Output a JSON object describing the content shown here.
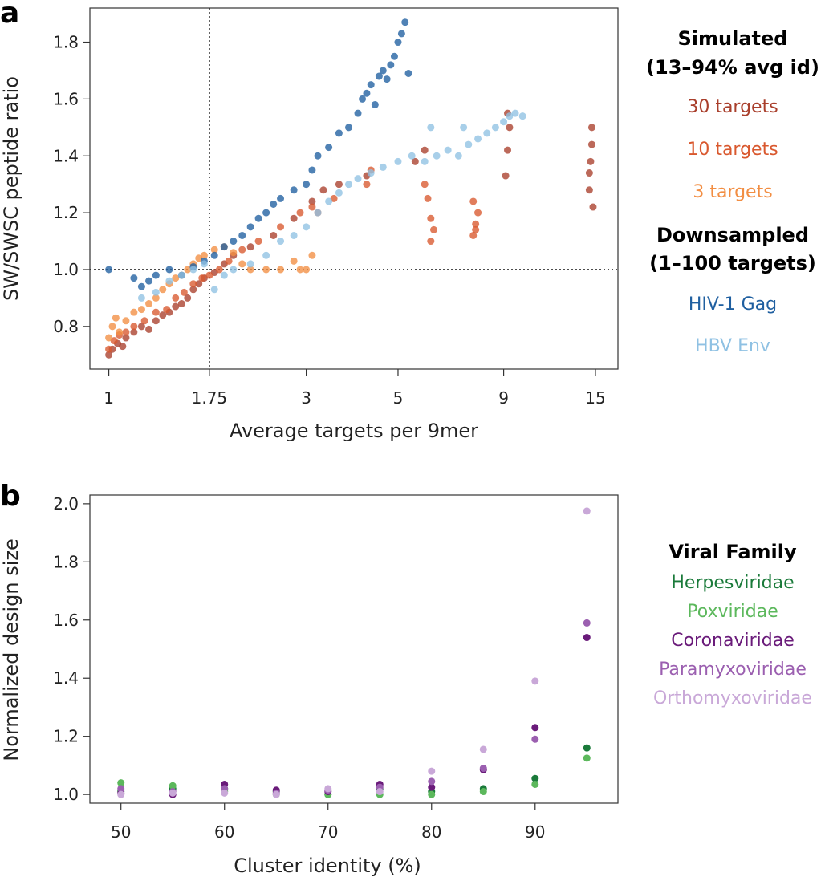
{
  "panels": [
    {
      "letter": "a"
    },
    {
      "letter": "b"
    }
  ],
  "chart_data": [
    {
      "type": "scatter",
      "panel": "a",
      "xlabel": "Average targets per 9mer",
      "ylabel": "SW/SWSC peptide ratio",
      "xscale": "log",
      "xlim": [
        0.9,
        17
      ],
      "ylim": [
        0.65,
        1.92
      ],
      "xticks": [
        1,
        1.75,
        3,
        5,
        9,
        15
      ],
      "xtick_labels": [
        "1",
        "1.75",
        "3",
        "5",
        "9",
        "15"
      ],
      "yticks": [
        0.8,
        1.0,
        1.2,
        1.4,
        1.6,
        1.8
      ],
      "ytick_labels": [
        "0.8",
        "1.0",
        "1.2",
        "1.4",
        "1.6",
        "1.8"
      ],
      "reference_lines": {
        "x": 1.75,
        "y": 1.0
      },
      "legend": {
        "groups": [
          {
            "title_lines": [
              "Simulated",
              "(13–94% avg id)"
            ],
            "items": [
              {
                "name": "30 targets",
                "color": "#a93f2c"
              },
              {
                "name": "10 targets",
                "color": "#d9582e"
              },
              {
                "name": "3 targets",
                "color": "#f28e43"
              }
            ]
          },
          {
            "title_lines": [
              "Downsampled",
              "(1–100 targets)"
            ],
            "items": [
              {
                "name": "HIV-1 Gag",
                "color": "#1f5fa0"
              },
              {
                "name": "HBV Env",
                "color": "#8fc1e3"
              }
            ]
          }
        ]
      },
      "series": [
        {
          "name": "30 targets",
          "color": "#a93f2c",
          "points": [
            [
              1,
              0.7
            ],
            [
              1.02,
              0.72
            ],
            [
              1.05,
              0.74
            ],
            [
              1.08,
              0.73
            ],
            [
              1.1,
              0.76
            ],
            [
              1.15,
              0.78
            ],
            [
              1.2,
              0.8
            ],
            [
              1.25,
              0.79
            ],
            [
              1.3,
              0.82
            ],
            [
              1.35,
              0.84
            ],
            [
              1.4,
              0.85
            ],
            [
              1.45,
              0.87
            ],
            [
              1.5,
              0.88
            ],
            [
              1.55,
              0.9
            ],
            [
              1.6,
              0.93
            ],
            [
              1.65,
              0.95
            ],
            [
              1.7,
              0.97
            ],
            [
              1.8,
              0.99
            ],
            [
              1.9,
              1.02
            ],
            [
              2.0,
              1.05
            ],
            [
              2.2,
              1.08
            ],
            [
              2.5,
              1.12
            ],
            [
              2.8,
              1.18
            ],
            [
              3.1,
              1.24
            ],
            [
              3.3,
              1.28
            ],
            [
              3.6,
              1.3
            ],
            [
              4.2,
              1.33
            ],
            [
              5.5,
              1.38
            ],
            [
              5.8,
              1.42
            ],
            [
              9.1,
              1.33
            ],
            [
              9.2,
              1.42
            ],
            [
              9.3,
              1.5
            ],
            [
              9.2,
              1.55
            ],
            [
              14.5,
              1.34
            ],
            [
              14.6,
              1.38
            ],
            [
              14.7,
              1.5
            ],
            [
              14.8,
              1.22
            ],
            [
              14.5,
              1.28
            ],
            [
              14.7,
              1.44
            ]
          ]
        },
        {
          "name": "10 targets",
          "color": "#d9582e",
          "points": [
            [
              1,
              0.72
            ],
            [
              1.03,
              0.75
            ],
            [
              1.06,
              0.77
            ],
            [
              1.1,
              0.78
            ],
            [
              1.15,
              0.8
            ],
            [
              1.22,
              0.82
            ],
            [
              1.3,
              0.85
            ],
            [
              1.38,
              0.86
            ],
            [
              1.45,
              0.9
            ],
            [
              1.52,
              0.92
            ],
            [
              1.6,
              0.95
            ],
            [
              1.68,
              0.97
            ],
            [
              1.75,
              0.98
            ],
            [
              1.85,
              1.0
            ],
            [
              1.95,
              1.03
            ],
            [
              2.1,
              1.07
            ],
            [
              2.3,
              1.1
            ],
            [
              2.6,
              1.15
            ],
            [
              2.9,
              1.2
            ],
            [
              3.1,
              1.22
            ],
            [
              3.2,
              1.2
            ],
            [
              3.5,
              1.25
            ],
            [
              4.2,
              1.3
            ],
            [
              4.3,
              1.35
            ],
            [
              5.9,
              1.25
            ],
            [
              6.0,
              1.18
            ],
            [
              6.1,
              1.14
            ],
            [
              6.0,
              1.1
            ],
            [
              5.8,
              1.3
            ],
            [
              7.6,
              1.12
            ],
            [
              7.7,
              1.16
            ],
            [
              7.8,
              1.2
            ],
            [
              7.6,
              1.24
            ],
            [
              7.7,
              1.14
            ]
          ]
        },
        {
          "name": "3 targets",
          "color": "#f28e43",
          "points": [
            [
              1,
              0.76
            ],
            [
              1.02,
              0.8
            ],
            [
              1.04,
              0.83
            ],
            [
              1.06,
              0.78
            ],
            [
              1.1,
              0.82
            ],
            [
              1.15,
              0.85
            ],
            [
              1.2,
              0.86
            ],
            [
              1.25,
              0.88
            ],
            [
              1.3,
              0.9
            ],
            [
              1.35,
              0.93
            ],
            [
              1.4,
              0.95
            ],
            [
              1.45,
              0.97
            ],
            [
              1.5,
              0.98
            ],
            [
              1.55,
              1.0
            ],
            [
              1.6,
              1.02
            ],
            [
              1.65,
              1.04
            ],
            [
              1.7,
              1.05
            ],
            [
              1.8,
              1.07
            ],
            [
              1.9,
              1.08
            ],
            [
              2.0,
              1.06
            ],
            [
              2.1,
              1.02
            ],
            [
              2.2,
              1.0
            ],
            [
              2.4,
              1.0
            ],
            [
              2.6,
              1.0
            ],
            [
              2.8,
              1.03
            ],
            [
              3.0,
              1.0
            ],
            [
              3.1,
              1.05
            ],
            [
              2.9,
              1.0
            ]
          ]
        },
        {
          "name": "HIV-1 Gag",
          "color": "#1f5fa0",
          "points": [
            [
              1,
              1.0
            ],
            [
              1.15,
              0.97
            ],
            [
              1.2,
              0.94
            ],
            [
              1.25,
              0.96
            ],
            [
              1.3,
              0.98
            ],
            [
              1.4,
              1.0
            ],
            [
              1.5,
              0.98
            ],
            [
              1.6,
              1.01
            ],
            [
              1.7,
              1.03
            ],
            [
              1.8,
              1.05
            ],
            [
              1.9,
              1.08
            ],
            [
              2.0,
              1.1
            ],
            [
              2.1,
              1.12
            ],
            [
              2.2,
              1.15
            ],
            [
              2.3,
              1.18
            ],
            [
              2.4,
              1.2
            ],
            [
              2.5,
              1.23
            ],
            [
              2.6,
              1.25
            ],
            [
              2.8,
              1.28
            ],
            [
              3.0,
              1.3
            ],
            [
              3.1,
              1.35
            ],
            [
              3.2,
              1.4
            ],
            [
              3.4,
              1.43
            ],
            [
              3.6,
              1.48
            ],
            [
              3.8,
              1.5
            ],
            [
              4.0,
              1.55
            ],
            [
              4.1,
              1.6
            ],
            [
              4.2,
              1.62
            ],
            [
              4.3,
              1.65
            ],
            [
              4.4,
              1.58
            ],
            [
              4.5,
              1.68
            ],
            [
              4.6,
              1.7
            ],
            [
              4.7,
              1.67
            ],
            [
              4.8,
              1.72
            ],
            [
              4.9,
              1.75
            ],
            [
              5.0,
              1.8
            ],
            [
              5.1,
              1.83
            ],
            [
              5.2,
              1.87
            ],
            [
              5.3,
              1.69
            ]
          ]
        },
        {
          "name": "HBV Env",
          "color": "#8fc1e3",
          "points": [
            [
              1.2,
              0.9
            ],
            [
              1.3,
              0.92
            ],
            [
              1.4,
              0.96
            ],
            [
              1.5,
              0.98
            ],
            [
              1.6,
              1.0
            ],
            [
              1.7,
              1.02
            ],
            [
              1.8,
              0.93
            ],
            [
              1.9,
              0.98
            ],
            [
              2.0,
              1.0
            ],
            [
              2.2,
              1.02
            ],
            [
              2.4,
              1.05
            ],
            [
              2.6,
              1.1
            ],
            [
              2.8,
              1.12
            ],
            [
              3.0,
              1.15
            ],
            [
              3.2,
              1.2
            ],
            [
              3.4,
              1.24
            ],
            [
              3.6,
              1.27
            ],
            [
              3.8,
              1.3
            ],
            [
              4.0,
              1.32
            ],
            [
              4.3,
              1.34
            ],
            [
              4.6,
              1.36
            ],
            [
              5.0,
              1.38
            ],
            [
              5.4,
              1.4
            ],
            [
              5.8,
              1.38
            ],
            [
              6.2,
              1.4
            ],
            [
              6.6,
              1.42
            ],
            [
              7.0,
              1.4
            ],
            [
              7.4,
              1.44
            ],
            [
              7.8,
              1.46
            ],
            [
              8.2,
              1.48
            ],
            [
              8.6,
              1.5
            ],
            [
              9.0,
              1.52
            ],
            [
              9.3,
              1.54
            ],
            [
              9.6,
              1.55
            ],
            [
              10.0,
              1.54
            ],
            [
              7.2,
              1.5
            ],
            [
              6.0,
              1.5
            ]
          ]
        }
      ]
    },
    {
      "type": "scatter",
      "panel": "b",
      "xlabel": "Cluster identity (%)",
      "ylabel": "Normalized design size",
      "xlim": [
        47,
        98
      ],
      "ylim": [
        0.97,
        2.03
      ],
      "xticks": [
        50,
        60,
        70,
        80,
        90
      ],
      "xtick_labels": [
        "50",
        "60",
        "70",
        "80",
        "90"
      ],
      "yticks": [
        1.0,
        1.2,
        1.4,
        1.6,
        1.8,
        2.0
      ],
      "ytick_labels": [
        "1.0",
        "1.2",
        "1.4",
        "1.6",
        "1.8",
        "2.0"
      ],
      "legend": {
        "title": "Viral Family",
        "items": [
          {
            "name": "Herpesviridae",
            "color": "#1a7a3a"
          },
          {
            "name": "Poxviridae",
            "color": "#5cb85c"
          },
          {
            "name": "Coronaviridae",
            "color": "#6a1b7a"
          },
          {
            "name": "Paramyxoviridae",
            "color": "#9b5fb0"
          },
          {
            "name": "Orthomyxoviridae",
            "color": "#c9a8d8"
          }
        ]
      },
      "series": [
        {
          "name": "Herpesviridae",
          "color": "#1a7a3a",
          "x": [
            50,
            55,
            60,
            65,
            70,
            75,
            80,
            85,
            90,
            95
          ],
          "y": [
            1.01,
            1.02,
            1.02,
            1.01,
            1.0,
            1.02,
            1.01,
            1.02,
            1.055,
            1.16
          ]
        },
        {
          "name": "Poxviridae",
          "color": "#5cb85c",
          "x": [
            50,
            55,
            60,
            65,
            70,
            75,
            80,
            85,
            90,
            95
          ],
          "y": [
            1.04,
            1.03,
            1.01,
            1.0,
            1.0,
            1.0,
            1.0,
            1.01,
            1.035,
            1.125
          ]
        },
        {
          "name": "Coronaviridae",
          "color": "#6a1b7a",
          "x": [
            50,
            55,
            60,
            65,
            70,
            75,
            80,
            85,
            90,
            95
          ],
          "y": [
            1.005,
            1.0,
            1.035,
            1.015,
            1.01,
            1.035,
            1.025,
            1.085,
            1.23,
            1.54
          ]
        },
        {
          "name": "Paramyxoviridae",
          "color": "#9b5fb0",
          "x": [
            50,
            55,
            60,
            65,
            70,
            75,
            80,
            85,
            90,
            95
          ],
          "y": [
            1.02,
            1.01,
            1.02,
            1.005,
            1.015,
            1.025,
            1.045,
            1.09,
            1.19,
            1.59
          ]
        },
        {
          "name": "Orthomyxoviridae",
          "color": "#c9a8d8",
          "x": [
            50,
            55,
            60,
            65,
            70,
            75,
            80,
            85,
            90,
            95
          ],
          "y": [
            1.0,
            1.005,
            1.005,
            1.0,
            1.02,
            1.01,
            1.08,
            1.155,
            1.39,
            1.975
          ]
        }
      ]
    }
  ]
}
